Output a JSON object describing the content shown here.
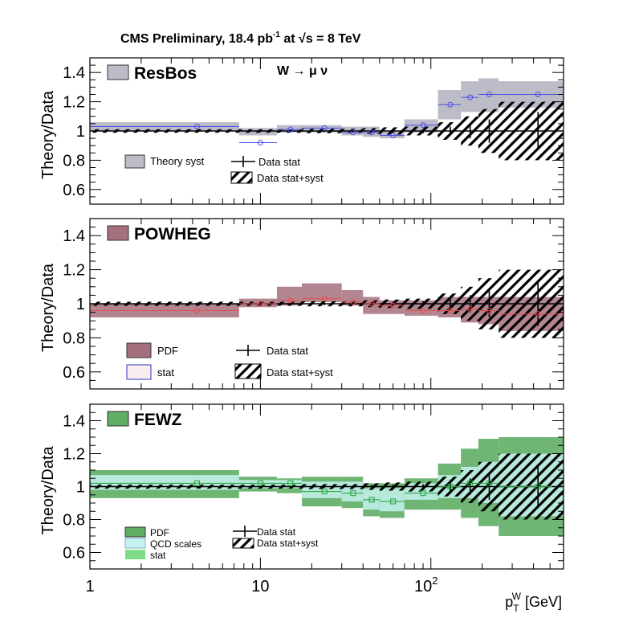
{
  "title_main": "CMS Preliminary, 18.4 pb",
  "title_sup": "-1",
  "title_at": " at ",
  "title_sqrt": "√s",
  "title_energy": " = 8 TeV",
  "xaxis_label": "p",
  "xaxis_sub": "T",
  "xaxis_sup": "W",
  "xaxis_unit": " [GeV]",
  "xaxis_ticks": [
    "1",
    "10",
    "10"
  ],
  "xaxis_tick_sup": "2",
  "panels": [
    {
      "name": "ResBos",
      "process": "W  →  μ  ν",
      "ylabel": "Theory/Data",
      "yticks": [
        "1.4",
        "1.2",
        "1",
        "0.8",
        "0.6"
      ],
      "legend": [
        {
          "label": "Theory syst",
          "style": "grey-box"
        },
        {
          "label": "Data stat",
          "style": "cross"
        },
        {
          "label": "Data stat+syst",
          "style": "hatch"
        }
      ]
    },
    {
      "name": "POWHEG",
      "ylabel": "Theory/Data",
      "yticks": [
        "1.4",
        "1.2",
        "1",
        "0.8",
        "0.6"
      ],
      "legend": [
        {
          "label": "PDF",
          "style": "rose-box"
        },
        {
          "label": "stat",
          "style": "blue-outline-box"
        },
        {
          "label": "Data stat",
          "style": "cross"
        },
        {
          "label": "Data stat+syst",
          "style": "hatch"
        }
      ]
    },
    {
      "name": "FEWZ",
      "ylabel": "Theory/Data",
      "yticks": [
        "1.4",
        "1.2",
        "1",
        "0.8",
        "0.6"
      ],
      "legend": [
        {
          "label": "PDF",
          "style": "green-box"
        },
        {
          "label": "QCD scales",
          "style": "cyan-box"
        },
        {
          "label": "stat",
          "style": "light-green-box"
        },
        {
          "label": "Data stat",
          "style": "cross"
        },
        {
          "label": "Data stat+syst",
          "style": "hatch"
        }
      ]
    }
  ],
  "chart_data": {
    "type": "line",
    "x_scale": "log",
    "xlim": [
      1,
      600
    ],
    "ylim": [
      0.5,
      1.5
    ],
    "bins": [
      [
        1,
        7.5
      ],
      [
        7.5,
        12.5
      ],
      [
        12.5,
        17.5
      ],
      [
        17.5,
        30
      ],
      [
        30,
        40
      ],
      [
        40,
        50
      ],
      [
        50,
        70
      ],
      [
        70,
        110
      ],
      [
        110,
        150
      ],
      [
        150,
        190
      ],
      [
        190,
        250
      ],
      [
        250,
        600
      ]
    ],
    "centers": [
      4.25,
      10,
      15,
      23.75,
      35,
      45,
      60,
      90,
      130,
      170,
      220,
      425
    ],
    "data_stat": [
      0.008,
      0.008,
      0.008,
      0.008,
      0.008,
      0.01,
      0.012,
      0.015,
      0.03,
      0.05,
      0.08,
      0.13
    ],
    "data_stat_syst": [
      0.012,
      0.012,
      0.012,
      0.015,
      0.015,
      0.02,
      0.025,
      0.03,
      0.06,
      0.1,
      0.15,
      0.2
    ],
    "series": [
      {
        "name": "ResBos",
        "color": "#4a50e6",
        "values": [
          1.03,
          0.92,
          1.01,
          1.02,
          0.99,
          0.99,
          0.97,
          1.04,
          1.18,
          1.23,
          1.25,
          1.25
        ],
        "band_up": [
          1.06,
          1.02,
          1.04,
          1.04,
          1.03,
          1.03,
          1.0,
          1.08,
          1.28,
          1.34,
          1.36,
          1.34
        ],
        "band_dn": [
          1.0,
          0.97,
          0.99,
          0.99,
          0.97,
          0.96,
          0.95,
          0.99,
          1.08,
          1.13,
          1.13,
          1.16
        ]
      },
      {
        "name": "POWHEG",
        "color": "#e05050",
        "values": [
          0.96,
          1.0,
          1.02,
          1.03,
          1.01,
          1.0,
          0.99,
          0.96,
          0.96,
          0.97,
          0.96,
          0.94
        ],
        "band_up": [
          1.0,
          1.03,
          1.1,
          1.12,
          1.08,
          1.04,
          1.02,
          1.02,
          1.04,
          1.04,
          1.04,
          1.04
        ],
        "band_dn": [
          0.92,
          0.98,
          0.99,
          1.01,
          0.99,
          0.94,
          0.94,
          0.93,
          0.92,
          0.89,
          0.88,
          0.84
        ]
      },
      {
        "name": "FEWZ",
        "color": "#20a030",
        "values": [
          1.02,
          1.02,
          1.02,
          0.97,
          0.96,
          0.92,
          0.91,
          0.96,
          1.0,
          1.02,
          1.02,
          1.0
        ],
        "pdf_up": [
          1.1,
          1.06,
          1.05,
          1.06,
          1.06,
          1.02,
          1.02,
          1.05,
          1.14,
          1.23,
          1.29,
          1.3
        ],
        "pdf_dn": [
          0.93,
          0.97,
          0.96,
          0.88,
          0.87,
          0.82,
          0.81,
          0.86,
          0.86,
          0.81,
          0.76,
          0.7
        ],
        "scale_up": [
          1.07,
          1.04,
          1.04,
          1.03,
          1.03,
          0.99,
          0.99,
          1.02,
          1.07,
          1.12,
          1.15,
          1.2
        ],
        "scale_dn": [
          0.98,
          0.99,
          0.99,
          0.93,
          0.91,
          0.86,
          0.85,
          0.92,
          0.93,
          0.93,
          0.9,
          0.82
        ]
      }
    ]
  }
}
